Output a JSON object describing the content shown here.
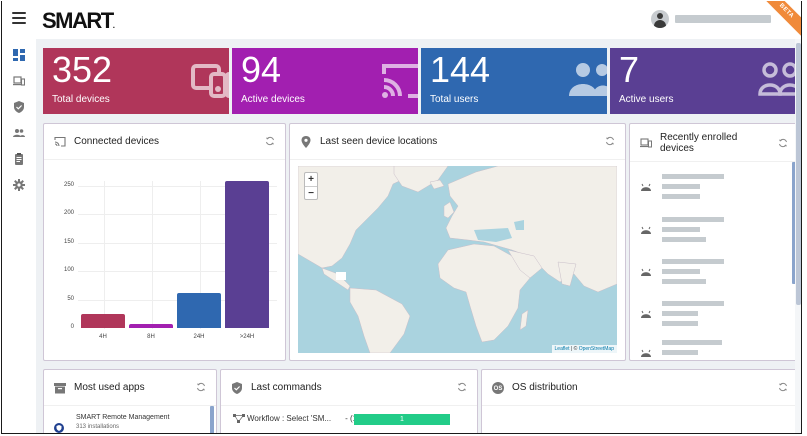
{
  "header": {
    "logo": "SMART",
    "user_name_redacted": true,
    "beta_label": "BETA"
  },
  "sidebar": {
    "items": [
      {
        "id": "dashboard",
        "icon": "dashboard-icon",
        "active": true
      },
      {
        "id": "devices",
        "icon": "devices-icon"
      },
      {
        "id": "security",
        "icon": "shield-icon"
      },
      {
        "id": "users",
        "icon": "users-icon"
      },
      {
        "id": "reports",
        "icon": "clipboard-icon"
      },
      {
        "id": "settings",
        "icon": "gear-icon"
      }
    ]
  },
  "stats": [
    {
      "value": "352",
      "label": "Total devices",
      "color": "#b0365a",
      "icon": "devices-icon"
    },
    {
      "value": "94",
      "label": "Active devices",
      "color": "#a21fb0",
      "icon": "cast-icon"
    },
    {
      "value": "144",
      "label": "Total users",
      "color": "#2f68b0",
      "icon": "users-icon"
    },
    {
      "value": "7",
      "label": "Active users",
      "color": "#5a3f93",
      "icon": "users-outline-icon"
    }
  ],
  "panels": {
    "connected": {
      "title": "Connected devices"
    },
    "locations": {
      "title": "Last seen device locations",
      "zoom_in": "+",
      "zoom_out": "−",
      "attribution_leaflet": "Leaflet",
      "attribution_sep": " | © ",
      "attribution_osm": "OpenStreetMap"
    },
    "enrolled": {
      "title": "Recently enrolled devices",
      "items_count_visible": 5
    },
    "apps": {
      "title": "Most used apps",
      "items": [
        {
          "name": "SMART Remote Management",
          "installs": "313 installations"
        }
      ]
    },
    "commands": {
      "title": "Last commands",
      "items": [
        {
          "label": "Workflow : Select 'SM...",
          "count": "- (1)",
          "bar_value": "1",
          "bar_color": "#22cc88"
        }
      ]
    },
    "os": {
      "title": "OS distribution"
    }
  },
  "chart_data": {
    "type": "bar",
    "title": "Connected devices",
    "categories": [
      "4H",
      "8H",
      "24H",
      ">24H"
    ],
    "values": [
      24,
      7,
      62,
      259
    ],
    "colors": [
      "#b0365a",
      "#a21fb0",
      "#2f68b0",
      "#5a3f93"
    ],
    "xlabel": "",
    "ylabel": "",
    "ylim": [
      0,
      260
    ],
    "yticks": [
      0,
      50,
      100,
      150,
      200,
      250
    ],
    "grid": true,
    "legend": false
  }
}
